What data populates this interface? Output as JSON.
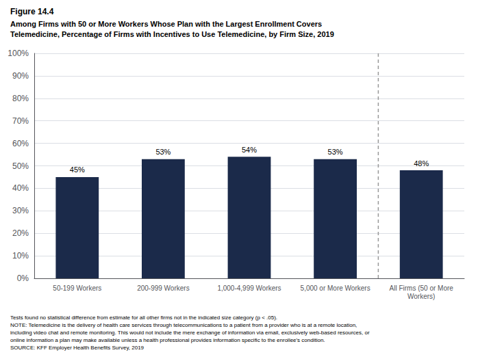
{
  "chart_data": {
    "type": "bar",
    "title": "Figure 14.4",
    "subtitle": "Among Firms with 50 or More Workers Whose Plan with the Largest Enrollment Covers\nTelemedicine, Percentage of Firms with Incentives to Use Telemedicine, by Firm Size, 2019",
    "categories": [
      "50-199 Workers",
      "200-999 Workers",
      "1,000-4,999 Workers",
      "5,000 or More Workers",
      "All Firms (50 or More\nWorkers)"
    ],
    "values": [
      45,
      53,
      54,
      53,
      48
    ],
    "value_labels": [
      "45%",
      "53%",
      "54%",
      "53%",
      "48%"
    ],
    "data_labels": true,
    "color": "#1b2a4a",
    "ylim": [
      0,
      100
    ],
    "yticks": [
      {
        "value": 0,
        "label": "0%"
      },
      {
        "value": 10,
        "label": "10%"
      },
      {
        "value": 20,
        "label": "20%"
      },
      {
        "value": 30,
        "label": "30%"
      },
      {
        "value": 40,
        "label": "40%"
      },
      {
        "value": 50,
        "label": "50%"
      },
      {
        "value": 60,
        "label": "60%"
      },
      {
        "value": 70,
        "label": "70%"
      },
      {
        "value": 80,
        "label": "80%"
      },
      {
        "value": 90,
        "label": "90%"
      },
      {
        "value": 100,
        "label": "100%"
      }
    ],
    "grid": true,
    "annotations": [
      "Tests found no statistical difference from estimate for all other firms not in the indicated size category (p < .05).",
      "NOTE: Telemedicine is the delivery of health care services through telecommunications to a patient from a provider who is at a remote location,",
      "including video chat and remote monitoring. This would not include the mere exchange of information via email, exclusively web-based resources, or",
      "online information a plan may make available unless a health professional provides information specific to the enrollee's condition.",
      "SOURCE: KFF Employer Health Benefits Survey, 2019"
    ]
  }
}
